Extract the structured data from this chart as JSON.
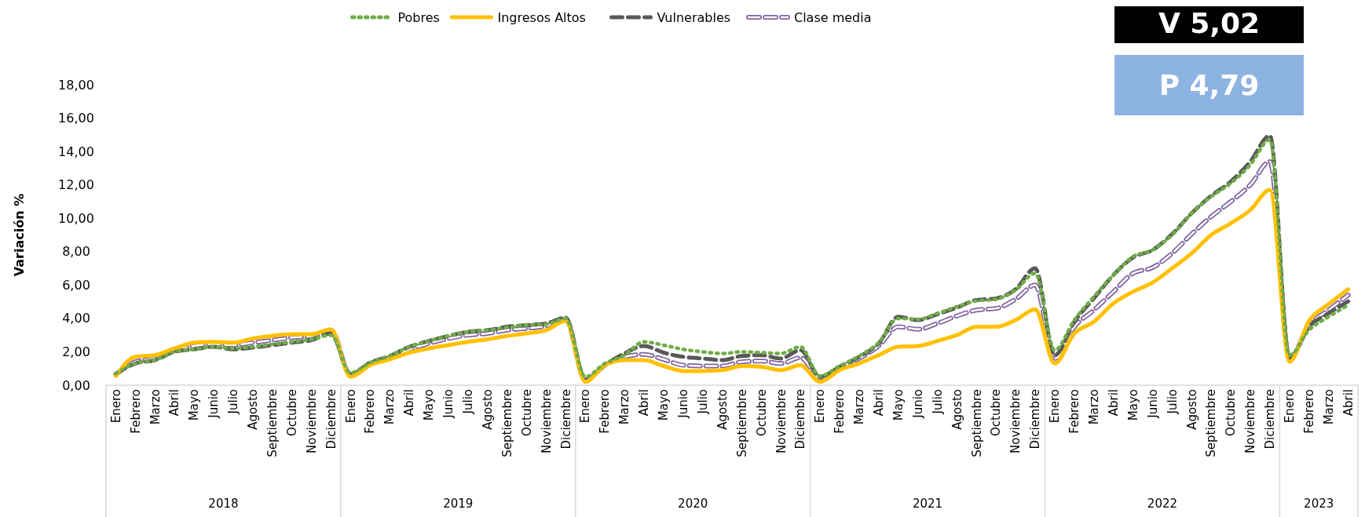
{
  "chart_data": {
    "type": "line",
    "ylabel": "Variación  %",
    "categories": [
      "Enero",
      "Febrero",
      "Marzo",
      "Abril",
      "Mayo",
      "Junio",
      "Julio",
      "Agosto",
      "Septiembre",
      "Octubre",
      "Noviembre",
      "Diciembre",
      "Enero",
      "Febrero",
      "Marzo",
      "Abril",
      "Mayo",
      "Junio",
      "Julio",
      "Agosto",
      "Septiembre",
      "Octubre",
      "Noviembre",
      "Diciembre",
      "Enero",
      "Febrero",
      "Marzo",
      "Abril",
      "Mayo",
      "Junio",
      "Julio",
      "Agosto",
      "Septiembre",
      "Octubre",
      "Noviembre",
      "Diciembre",
      "Enero",
      "Febrero",
      "Marzo",
      "Abril",
      "Mayo",
      "Junio",
      "Julio",
      "Agosto",
      "Septiembre",
      "Octubre",
      "Noviembre",
      "Diciembre",
      "Enero",
      "Febrero",
      "Marzo",
      "Abril",
      "Mayo",
      "Junio",
      "Julio",
      "Agosto",
      "Septiembre",
      "Octubre",
      "Noviembre",
      "Diciembre",
      "Enero",
      "Febrero",
      "Marzo",
      "Abril"
    ],
    "series": [
      {
        "name": "Pobres",
        "color": "#70ad47",
        "line_style": "dotted",
        "values": [
          0.7,
          1.3,
          1.5,
          2.0,
          2.15,
          2.3,
          2.2,
          2.3,
          2.45,
          2.6,
          2.75,
          3.0,
          0.75,
          1.35,
          1.75,
          2.3,
          2.65,
          2.95,
          3.2,
          3.3,
          3.45,
          3.6,
          3.65,
          4.0,
          0.5,
          1.3,
          1.8,
          2.6,
          2.4,
          2.15,
          2.0,
          1.9,
          2.0,
          1.95,
          1.9,
          2.3,
          0.55,
          1.15,
          1.75,
          2.55,
          4.0,
          3.95,
          4.3,
          4.7,
          5.05,
          5.15,
          5.7,
          6.7,
          2.1,
          3.9,
          5.3,
          6.6,
          7.7,
          8.1,
          9.0,
          10.3,
          11.3,
          12.1,
          13.2,
          14.7,
          1.8,
          3.3,
          4.1,
          4.79
        ]
      },
      {
        "name": "Ingresos Altos",
        "color": "#ffc000",
        "line_style": "solid",
        "values": [
          0.55,
          1.7,
          1.8,
          2.2,
          2.55,
          2.6,
          2.55,
          2.8,
          2.95,
          3.05,
          3.05,
          3.35,
          0.5,
          1.2,
          1.55,
          1.95,
          2.2,
          2.4,
          2.6,
          2.75,
          2.95,
          3.1,
          3.3,
          3.85,
          0.2,
          1.2,
          1.5,
          1.5,
          1.15,
          0.85,
          0.85,
          0.9,
          1.15,
          1.1,
          0.9,
          1.2,
          0.2,
          0.9,
          1.3,
          1.8,
          2.3,
          2.35,
          2.65,
          3.0,
          3.5,
          3.5,
          3.9,
          4.55,
          1.3,
          3.1,
          3.8,
          4.9,
          5.6,
          6.15,
          7.0,
          7.9,
          9.0,
          9.7,
          10.5,
          11.7,
          1.4,
          3.85,
          4.85,
          5.75
        ]
      },
      {
        "name": "Vulnerables",
        "color": "#595959",
        "line_style": "dashed",
        "values": [
          0.65,
          1.3,
          1.5,
          2.0,
          2.15,
          2.3,
          2.15,
          2.25,
          2.4,
          2.55,
          2.7,
          3.1,
          0.65,
          1.35,
          1.75,
          2.3,
          2.65,
          2.95,
          3.2,
          3.3,
          3.5,
          3.6,
          3.7,
          4.05,
          0.3,
          1.2,
          1.9,
          2.35,
          1.95,
          1.7,
          1.6,
          1.5,
          1.75,
          1.8,
          1.6,
          2.1,
          0.5,
          1.1,
          1.7,
          2.5,
          4.1,
          3.9,
          4.25,
          4.65,
          5.1,
          5.2,
          5.75,
          7.0,
          1.8,
          3.8,
          5.2,
          6.6,
          7.65,
          8.1,
          9.05,
          10.3,
          11.35,
          12.2,
          13.4,
          14.95,
          1.6,
          3.5,
          4.3,
          5.02
        ]
      },
      {
        "name": "Clase media",
        "color": "#8064a2",
        "line_style": "dashed",
        "values": [
          0.65,
          1.4,
          1.6,
          2.05,
          2.35,
          2.45,
          2.4,
          2.55,
          2.7,
          2.85,
          2.95,
          3.3,
          0.6,
          1.3,
          1.65,
          2.15,
          2.5,
          2.8,
          3.0,
          3.1,
          3.3,
          3.4,
          3.55,
          3.95,
          0.3,
          1.2,
          1.7,
          1.85,
          1.55,
          1.2,
          1.15,
          1.15,
          1.4,
          1.45,
          1.3,
          1.65,
          0.45,
          1.05,
          1.6,
          2.35,
          3.5,
          3.35,
          3.7,
          4.15,
          4.5,
          4.6,
          5.15,
          6.0,
          1.6,
          3.5,
          4.5,
          5.6,
          6.7,
          7.05,
          7.9,
          9.05,
          10.1,
          11.0,
          12.0,
          13.4,
          1.6,
          3.6,
          4.5,
          5.4
        ]
      }
    ],
    "ylim": [
      0,
      18
    ],
    "yticks": [
      {
        "value": 0,
        "label": "0,00"
      },
      {
        "value": 2,
        "label": "2,00"
      },
      {
        "value": 4,
        "label": "4,00"
      },
      {
        "value": 6,
        "label": "6,00"
      },
      {
        "value": 8,
        "label": "8,00"
      },
      {
        "value": 10,
        "label": "10,00"
      },
      {
        "value": 12,
        "label": "12,00"
      },
      {
        "value": 14,
        "label": "14,00"
      },
      {
        "value": 16,
        "label": "16,00"
      },
      {
        "value": 18,
        "label": "18,00"
      }
    ],
    "grid": false,
    "legend": "top",
    "marker": "none",
    "annotations": [
      "2018",
      "2019",
      "2020",
      "2021",
      "2022",
      "2023",
      "V 5,02",
      "P 4,79"
    ]
  }
}
